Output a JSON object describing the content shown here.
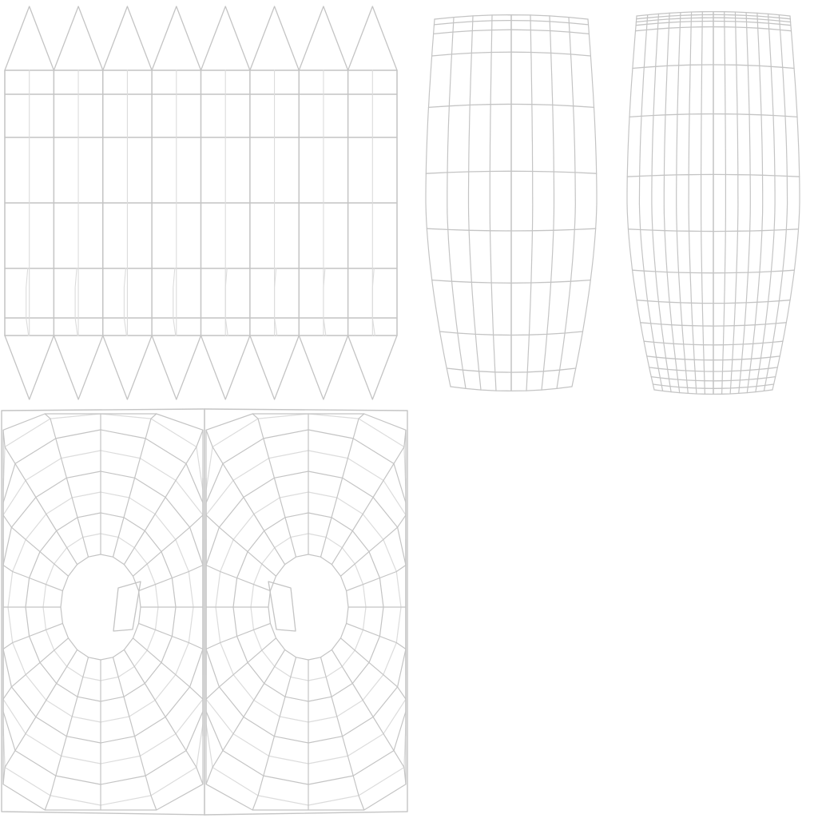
{
  "image": {
    "kind": "uv-layout-wireframe",
    "background_color": "#ffffff",
    "wire_color": "#c4c4c4",
    "wire_color_light": "#dcdcdc"
  },
  "islands": [
    {
      "name": "cylinder-strip-island",
      "shape": "grid-with-triangle-fans"
    },
    {
      "name": "tapered-body-island-left",
      "shape": "tapered-quad-grid"
    },
    {
      "name": "tapered-body-island-right",
      "shape": "tapered-quad-grid-dense"
    },
    {
      "name": "mirrored-face-island",
      "shape": "mirrored-radial-quad-grid"
    }
  ]
}
